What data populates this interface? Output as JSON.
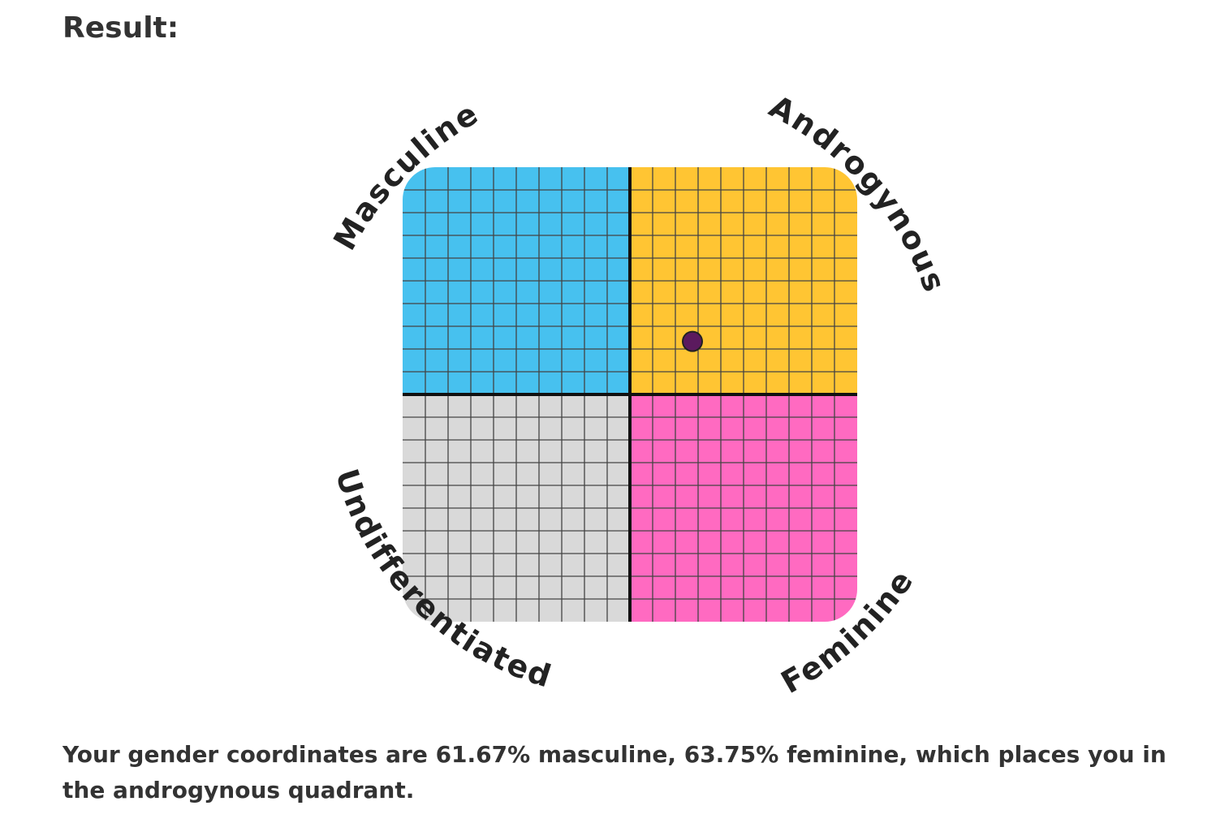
{
  "heading": "Result:",
  "chart_data": {
    "type": "scatter",
    "quadrants": [
      {
        "label": "Masculine",
        "color": "#47c1ef"
      },
      {
        "label": "Androgynous",
        "color": "#ffc533"
      },
      {
        "label": "Undifferentiated",
        "color": "#d9d9d9"
      },
      {
        "label": "Feminine",
        "color": "#ff6ac1"
      }
    ],
    "x": [
      63.75
    ],
    "y": [
      61.67
    ],
    "color": "#5b1a5e",
    "xlim": [
      0,
      100
    ],
    "ylim": [
      0,
      100
    ]
  },
  "result": "Your gender coordinates are 61.67% masculine, 63.75% feminine, which places you in the androgynous quadrant."
}
